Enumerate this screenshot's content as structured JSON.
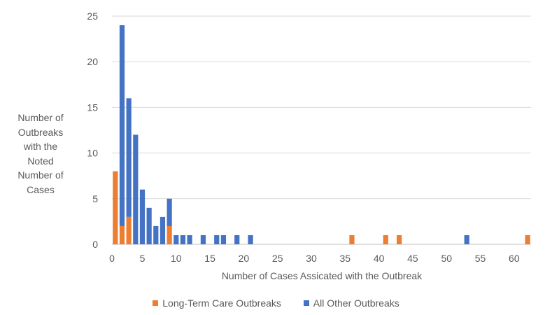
{
  "chart_data": {
    "type": "bar",
    "stacked": true,
    "xlabel": "Number of Cases Assicated with the Outbreak",
    "ylabel": "Number of Outbreaks with the Noted Number of Cases",
    "ylabel_lines": [
      "Number of",
      "Outbreaks",
      "with the",
      "Noted",
      "Number of",
      "Cases"
    ],
    "xlim": [
      0,
      62
    ],
    "ylim": [
      0,
      25
    ],
    "x_ticks": [
      0,
      5,
      10,
      15,
      20,
      25,
      30,
      35,
      40,
      45,
      50,
      55,
      60
    ],
    "y_ticks": [
      0,
      5,
      10,
      15,
      20,
      25
    ],
    "grid": "horizontal",
    "legend_position": "bottom",
    "series": [
      {
        "name": "Long-Term Care Outbreaks",
        "color": "#ED7D31",
        "points": [
          {
            "x": 1,
            "y": 8
          },
          {
            "x": 2,
            "y": 2
          },
          {
            "x": 3,
            "y": 3
          },
          {
            "x": 9,
            "y": 2
          },
          {
            "x": 36,
            "y": 1
          },
          {
            "x": 41,
            "y": 1
          },
          {
            "x": 43,
            "y": 1
          },
          {
            "x": 62,
            "y": 1
          }
        ]
      },
      {
        "name": "All Other Outbreaks",
        "color": "#4472C4",
        "points": [
          {
            "x": 2,
            "y": 22
          },
          {
            "x": 3,
            "y": 13
          },
          {
            "x": 4,
            "y": 12
          },
          {
            "x": 5,
            "y": 6
          },
          {
            "x": 6,
            "y": 4
          },
          {
            "x": 7,
            "y": 2
          },
          {
            "x": 8,
            "y": 3
          },
          {
            "x": 9,
            "y": 3
          },
          {
            "x": 10,
            "y": 1
          },
          {
            "x": 11,
            "y": 1
          },
          {
            "x": 12,
            "y": 1
          },
          {
            "x": 14,
            "y": 1
          },
          {
            "x": 16,
            "y": 1
          },
          {
            "x": 17,
            "y": 1
          },
          {
            "x": 19,
            "y": 1
          },
          {
            "x": 21,
            "y": 1
          },
          {
            "x": 53,
            "y": 1
          }
        ]
      }
    ]
  }
}
